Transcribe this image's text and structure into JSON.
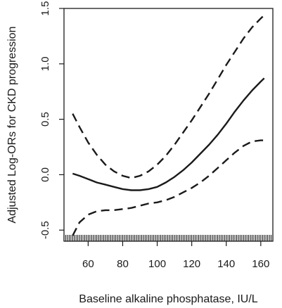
{
  "chart_data": {
    "type": "line",
    "title": "",
    "xlabel": "Baseline alkaline phosphatase, IU/L",
    "ylabel": "Adjusted Log-ORs for CKD progression",
    "xlim": [
      46,
      167
    ],
    "ylim": [
      -0.6,
      1.5
    ],
    "x_ticks": [
      60,
      80,
      100,
      120,
      140,
      160
    ],
    "x_tick_labels": [
      "60",
      "80",
      "100",
      "120",
      "140",
      "160"
    ],
    "y_ticks": [
      -0.5,
      0.0,
      0.5,
      1.0,
      1.5
    ],
    "y_tick_labels": [
      "-0.5",
      "0.0",
      "0.5",
      "1.0",
      "1.5"
    ],
    "grid": false,
    "legend": "none",
    "rug": {
      "from": 46,
      "to": 167,
      "step": 1
    },
    "series": [
      {
        "style": "solid",
        "x": [
          51,
          55,
          60,
          65,
          70,
          75,
          80,
          85,
          90,
          95,
          100,
          105,
          110,
          115,
          120,
          125,
          130,
          135,
          140,
          145,
          150,
          155,
          160,
          162
        ],
        "y": [
          0.01,
          -0.01,
          -0.04,
          -0.07,
          -0.09,
          -0.11,
          -0.13,
          -0.14,
          -0.14,
          -0.13,
          -0.11,
          -0.07,
          -0.02,
          0.04,
          0.11,
          0.19,
          0.27,
          0.36,
          0.46,
          0.57,
          0.67,
          0.76,
          0.84,
          0.87
        ]
      },
      {
        "style": "dashed",
        "x": [
          51,
          55,
          60,
          65,
          70,
          75,
          80,
          85,
          90,
          95,
          100,
          105,
          110,
          115,
          120,
          125,
          130,
          135,
          140,
          145,
          150,
          155,
          160,
          162
        ],
        "y": [
          0.55,
          0.43,
          0.29,
          0.18,
          0.09,
          0.03,
          -0.01,
          -0.03,
          -0.01,
          0.03,
          0.09,
          0.17,
          0.27,
          0.38,
          0.49,
          0.61,
          0.73,
          0.86,
          0.99,
          1.11,
          1.23,
          1.33,
          1.41,
          1.44
        ]
      },
      {
        "style": "dashed",
        "x": [
          51,
          55,
          60,
          65,
          70,
          75,
          80,
          85,
          90,
          95,
          100,
          105,
          110,
          115,
          120,
          125,
          130,
          135,
          140,
          145,
          150,
          155,
          160,
          162
        ],
        "y": [
          -0.55,
          -0.43,
          -0.36,
          -0.33,
          -0.32,
          -0.32,
          -0.31,
          -0.3,
          -0.28,
          -0.26,
          -0.25,
          -0.23,
          -0.2,
          -0.16,
          -0.12,
          -0.07,
          -0.01,
          0.06,
          0.13,
          0.2,
          0.26,
          0.3,
          0.31,
          0.31
        ]
      }
    ]
  }
}
